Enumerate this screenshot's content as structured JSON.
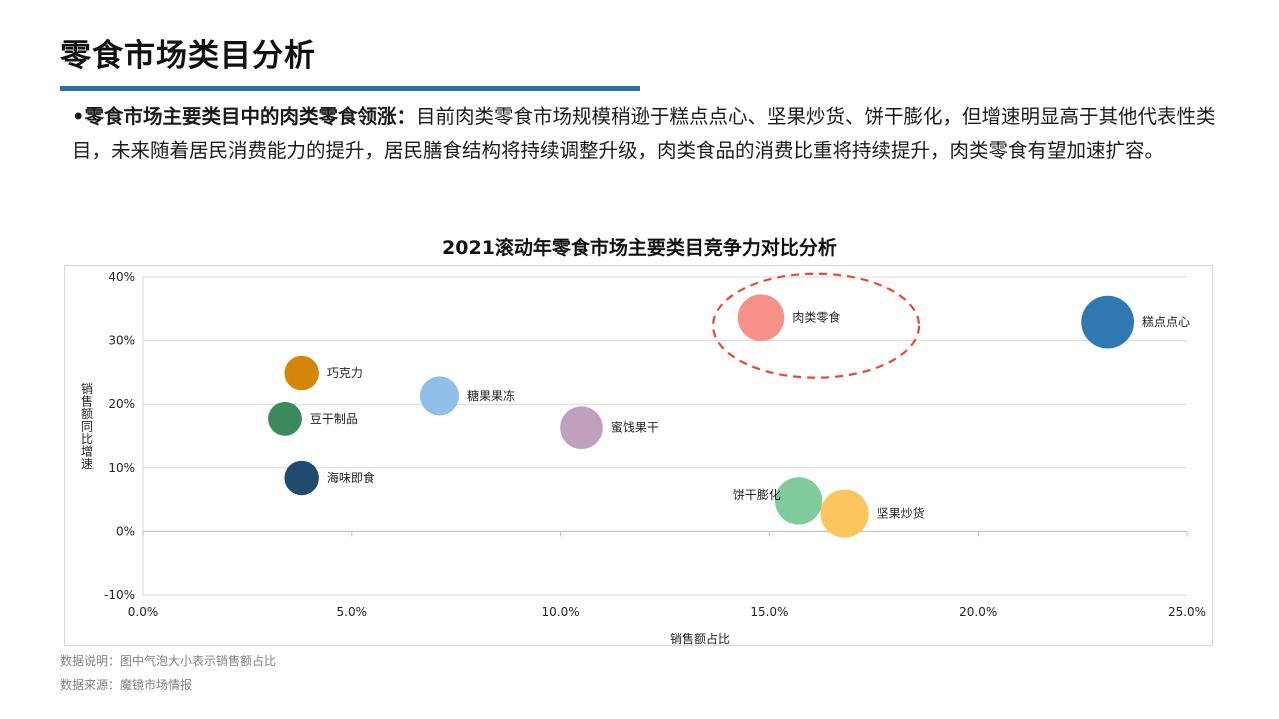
{
  "page": {
    "title": "零食市场类目分析",
    "accent_color": "#2e6fa3",
    "summary_lead": "•零食市场主要类目中的肉类零食领涨：",
    "summary_body": "目前肉类零食市场规模稍逊于糕点点心、坚果炒货、饼干膨化，但增速明显高于其他代表性类目，未来随着居民消费能力的提升，居民膳食结构将持续调整升级，肉类食品的消费比重将持续提升，肉类零食有望加速扩容。"
  },
  "chart_data": {
    "type": "scatter",
    "title": "2021滚动年零食市场主要类目竞争力对比分析",
    "xlabel": "销售额占比",
    "ylabel": "销售额同比增速",
    "xlim": [
      0,
      25
    ],
    "ylim": [
      -10,
      40
    ],
    "x_ticks": [
      "0.0%",
      "5.0%",
      "10.0%",
      "15.0%",
      "20.0%",
      "25.0%"
    ],
    "y_ticks": [
      "40%",
      "30%",
      "20%",
      "10%",
      "0%",
      "-10%"
    ],
    "grid": "horizontal",
    "bubble_size_encodes": "销售额占比",
    "highlight": "肉类零食",
    "highlight_color": "#e8473a",
    "series": [
      {
        "name": "巧克力",
        "x": 3.8,
        "y": 24.9,
        "color": "#d4860a"
      },
      {
        "name": "糖果果冻",
        "x": 7.1,
        "y": 21.3,
        "color": "#92bfea"
      },
      {
        "name": "豆干制品",
        "x": 3.4,
        "y": 17.7,
        "color": "#3a8a5c"
      },
      {
        "name": "蜜饯果干",
        "x": 10.5,
        "y": 16.3,
        "color": "#bfa0bf"
      },
      {
        "name": "海味即食",
        "x": 3.8,
        "y": 8.4,
        "color": "#1f4b6e"
      },
      {
        "name": "肉类零食",
        "x": 14.8,
        "y": 33.6,
        "color": "#f59187"
      },
      {
        "name": "饼干膨化",
        "x": 15.7,
        "y": 4.8,
        "color": "#7fcb9b"
      },
      {
        "name": "坚果炒货",
        "x": 16.8,
        "y": 2.8,
        "color": "#fdc55e"
      },
      {
        "name": "糕点点心",
        "x": 23.1,
        "y": 32.9,
        "color": "#2f79b0"
      }
    ]
  },
  "footnotes": {
    "note": "数据说明：图中气泡大小表示销售额占比",
    "source": "数据来源：魔镜市场情报"
  }
}
